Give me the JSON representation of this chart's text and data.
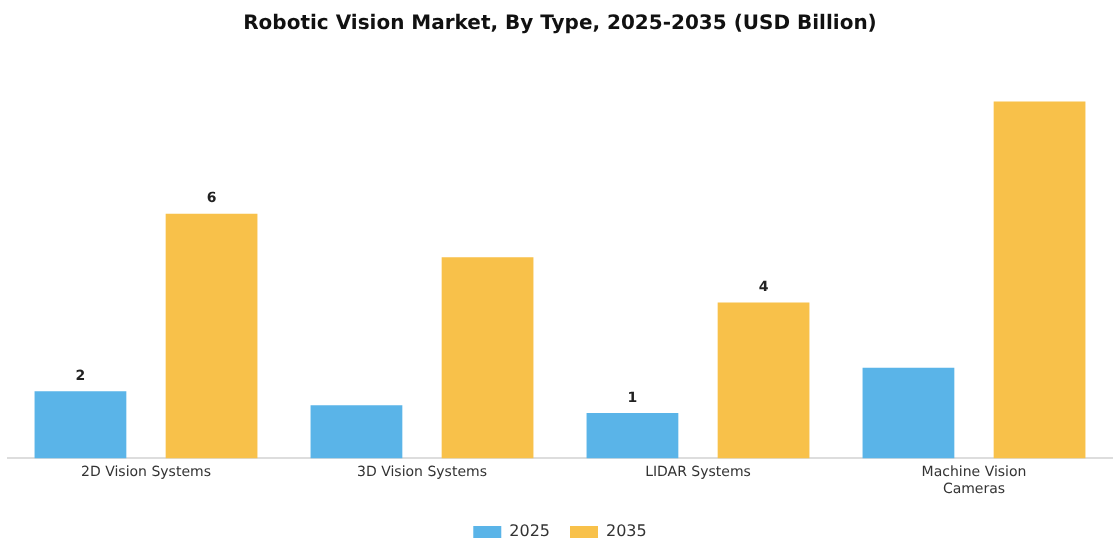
{
  "chart_data": {
    "type": "bar",
    "title": "Robotic Vision Market, By Type, 2025-2035 (USD Billion)",
    "categories": [
      "2D Vision Systems",
      "3D Vision Systems",
      "LIDAR Systems",
      "Machine Vision Cameras"
    ],
    "series": [
      {
        "name": "2025",
        "color": "#5ab4e8",
        "values": [
          1.7,
          1.35,
          1.15,
          2.3
        ],
        "value_labels": [
          "2",
          null,
          "1",
          null
        ]
      },
      {
        "name": "2035",
        "color": "#f8c14a",
        "values": [
          6.2,
          5.1,
          3.95,
          9.05
        ],
        "value_labels": [
          "6",
          null,
          "4",
          null
        ]
      }
    ],
    "legend": "bottom",
    "grid": false
  }
}
